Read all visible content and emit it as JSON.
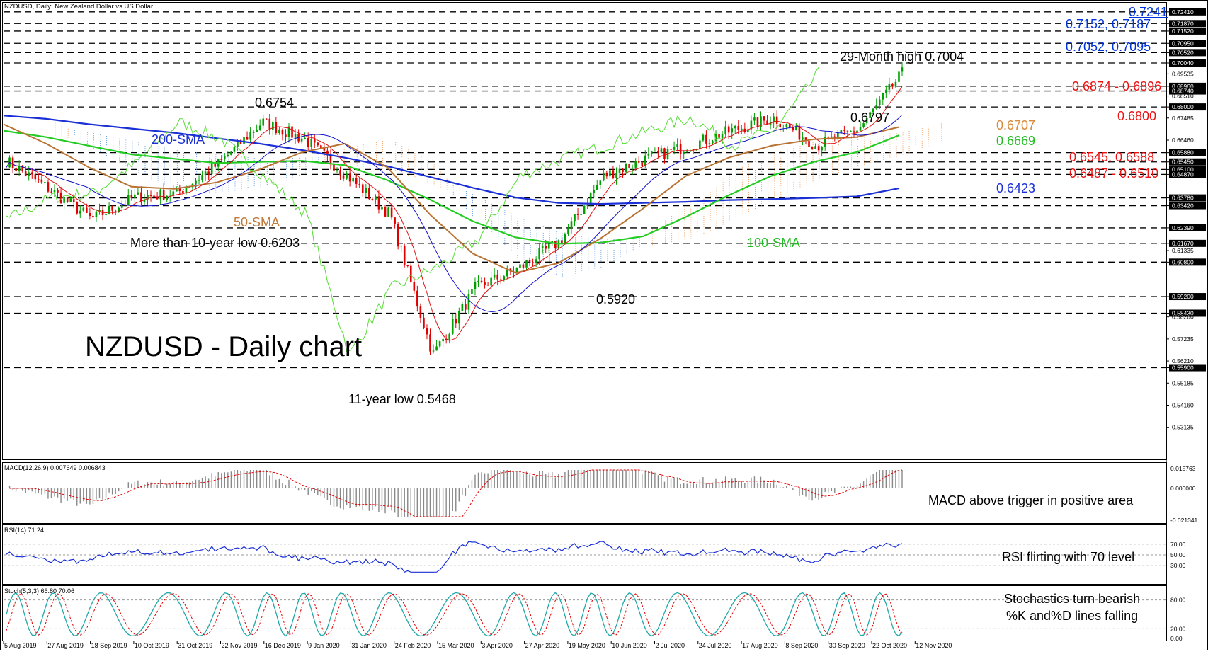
{
  "header": {
    "title": "NZDUSD, Daily:  New Zealand Dollar vs US Dollar"
  },
  "colors": {
    "candle_up": "#00a000",
    "candle_down": "#e00000",
    "sma200": "#1a2fd6",
    "sma100": "#22cc22",
    "sma50": "#b87333",
    "tenkan": "#e01010",
    "kijun": "#1010cc",
    "chikou": "#55dd33",
    "cloud_bull": "#f0a060",
    "cloud_bear": "#6aa0e0",
    "label_blue": "#0033dd",
    "label_red": "#ee1111",
    "label_orange": "#d98a3a",
    "label_green": "#22bb22"
  },
  "chart_data": [
    {
      "type": "line",
      "name": "price",
      "title": "NZDUSD - Daily chart",
      "x": [
        "5 Aug 2019",
        "27 Aug 2019",
        "18 Sep 2019",
        "10 Oct 2019",
        "31 Oct 2019",
        "22 Nov 2019",
        "16 Dec 2019",
        "9 Jan 2020",
        "31 Jan 2020",
        "24 Feb 2020",
        "15 Mar 2020",
        "3 Apr 2020",
        "27 Apr 2020",
        "19 May 2020",
        "10 Jun 2020",
        "2 Jul 2020",
        "24 Jul 2020",
        "17 Aug 2020",
        "8 Sep 2020",
        "30 Sep 2020",
        "22 Oct 2020",
        "12 Nov 2020"
      ],
      "ylim": [
        0.526,
        0.727
      ],
      "y_ticks": [
        "0.72410",
        "0.71870",
        "0.71520",
        "0.70950",
        "0.70520",
        "0.70040",
        "0.69535",
        "0.68960",
        "0.68740",
        "0.68510",
        "0.68000",
        "0.67485",
        "0.66460",
        "0.65880",
        "0.65450",
        "0.65100",
        "0.64870",
        "0.63780",
        "0.63420",
        "0.62390",
        "0.61670",
        "0.61335",
        "0.60800",
        "0.59200",
        "0.58430",
        "0.58260",
        "0.57235",
        "0.56210",
        "0.55900",
        "0.55185",
        "0.54160",
        "0.53135"
      ],
      "levels": [
        0.7241,
        0.7187,
        0.7152,
        0.7095,
        0.7052,
        0.7004,
        0.6896,
        0.6874,
        0.68,
        0.6588,
        0.6545,
        0.651,
        0.6487,
        0.6378,
        0.6342,
        0.6239,
        0.6167,
        0.608,
        0.592,
        0.5843,
        0.559
      ],
      "series": [
        {
          "name": "200-SMA",
          "values": [
            0.676,
            0.6745,
            0.672,
            0.67,
            0.668,
            0.6655,
            0.663,
            0.66,
            0.6565,
            0.6525,
            0.6475,
            0.6425,
            0.638,
            0.6355,
            0.635,
            0.6355,
            0.636,
            0.6368,
            0.6372,
            0.6378,
            0.6385,
            0.6423
          ]
        },
        {
          "name": "100-SMA",
          "values": [
            0.669,
            0.666,
            0.662,
            0.658,
            0.656,
            0.654,
            0.6545,
            0.655,
            0.653,
            0.646,
            0.637,
            0.627,
            0.6195,
            0.6165,
            0.617,
            0.62,
            0.629,
            0.639,
            0.648,
            0.6545,
            0.659,
            0.6669
          ]
        },
        {
          "name": "50-SMA",
          "values": [
            0.672,
            0.663,
            0.652,
            0.643,
            0.642,
            0.645,
            0.651,
            0.659,
            0.663,
            0.652,
            0.63,
            0.612,
            0.603,
            0.6075,
            0.619,
            0.633,
            0.648,
            0.6565,
            0.662,
            0.665,
            0.666,
            0.6707
          ]
        },
        {
          "name": "Close",
          "values": [
            0.655,
            0.642,
            0.628,
            0.638,
            0.64,
            0.654,
            0.673,
            0.665,
            0.648,
            0.63,
            0.565,
            0.596,
            0.605,
            0.618,
            0.648,
            0.656,
            0.662,
            0.669,
            0.675,
            0.662,
            0.67,
            0.6955
          ]
        }
      ]
    },
    {
      "type": "bar",
      "name": "macd",
      "legend": "MACD(12,26,9) 0.007649 0.006843",
      "y_ticks": [
        "0.015763",
        "0.000000",
        "-0.021341"
      ]
    },
    {
      "type": "line",
      "name": "rsi",
      "legend": "RSI(14) 71.24",
      "y_ticks": [
        "70.00",
        "50.00",
        "30.00"
      ]
    },
    {
      "type": "line",
      "name": "stoch",
      "legend": "Stoch(5,3,3) 66.80 70.06",
      "y_ticks": [
        "80.00",
        "20.00",
        "0.00"
      ]
    }
  ],
  "annotations": {
    "main_title": "NZDUSD - Daily chart",
    "sma200": "200-SMA",
    "sma50": "50-SMA",
    "sma100": "100-SMA",
    "low_2019": "More than 10-year low 0.6203",
    "high_dec": "0.6754",
    "low_mar": "11-year low 0.5468",
    "low_may": "0.5920",
    "high_sep": "0.6797",
    "high_nov": "29-Month high 0.7004",
    "lvl_7241": "0.7241",
    "lvl_7152": "0.7152, 0.7187",
    "lvl_7052": "0.7052, 0.7095",
    "lvl_6874": "0.6874 - 0.6896",
    "lvl_6800": "0.6800",
    "lvl_6707": "0.6707",
    "lvl_6669": "0.6669",
    "lvl_6545": "0.6545, 0.6588",
    "lvl_6487": "0.6487 - 0.6510",
    "lvl_6423": "0.6423",
    "macd_note": "MACD above trigger in positive area",
    "rsi_note": "RSI flirting with 70 level",
    "stoch_note_1": "Stochastics turn bearish",
    "stoch_note_2": "%K and%D lines falling"
  }
}
